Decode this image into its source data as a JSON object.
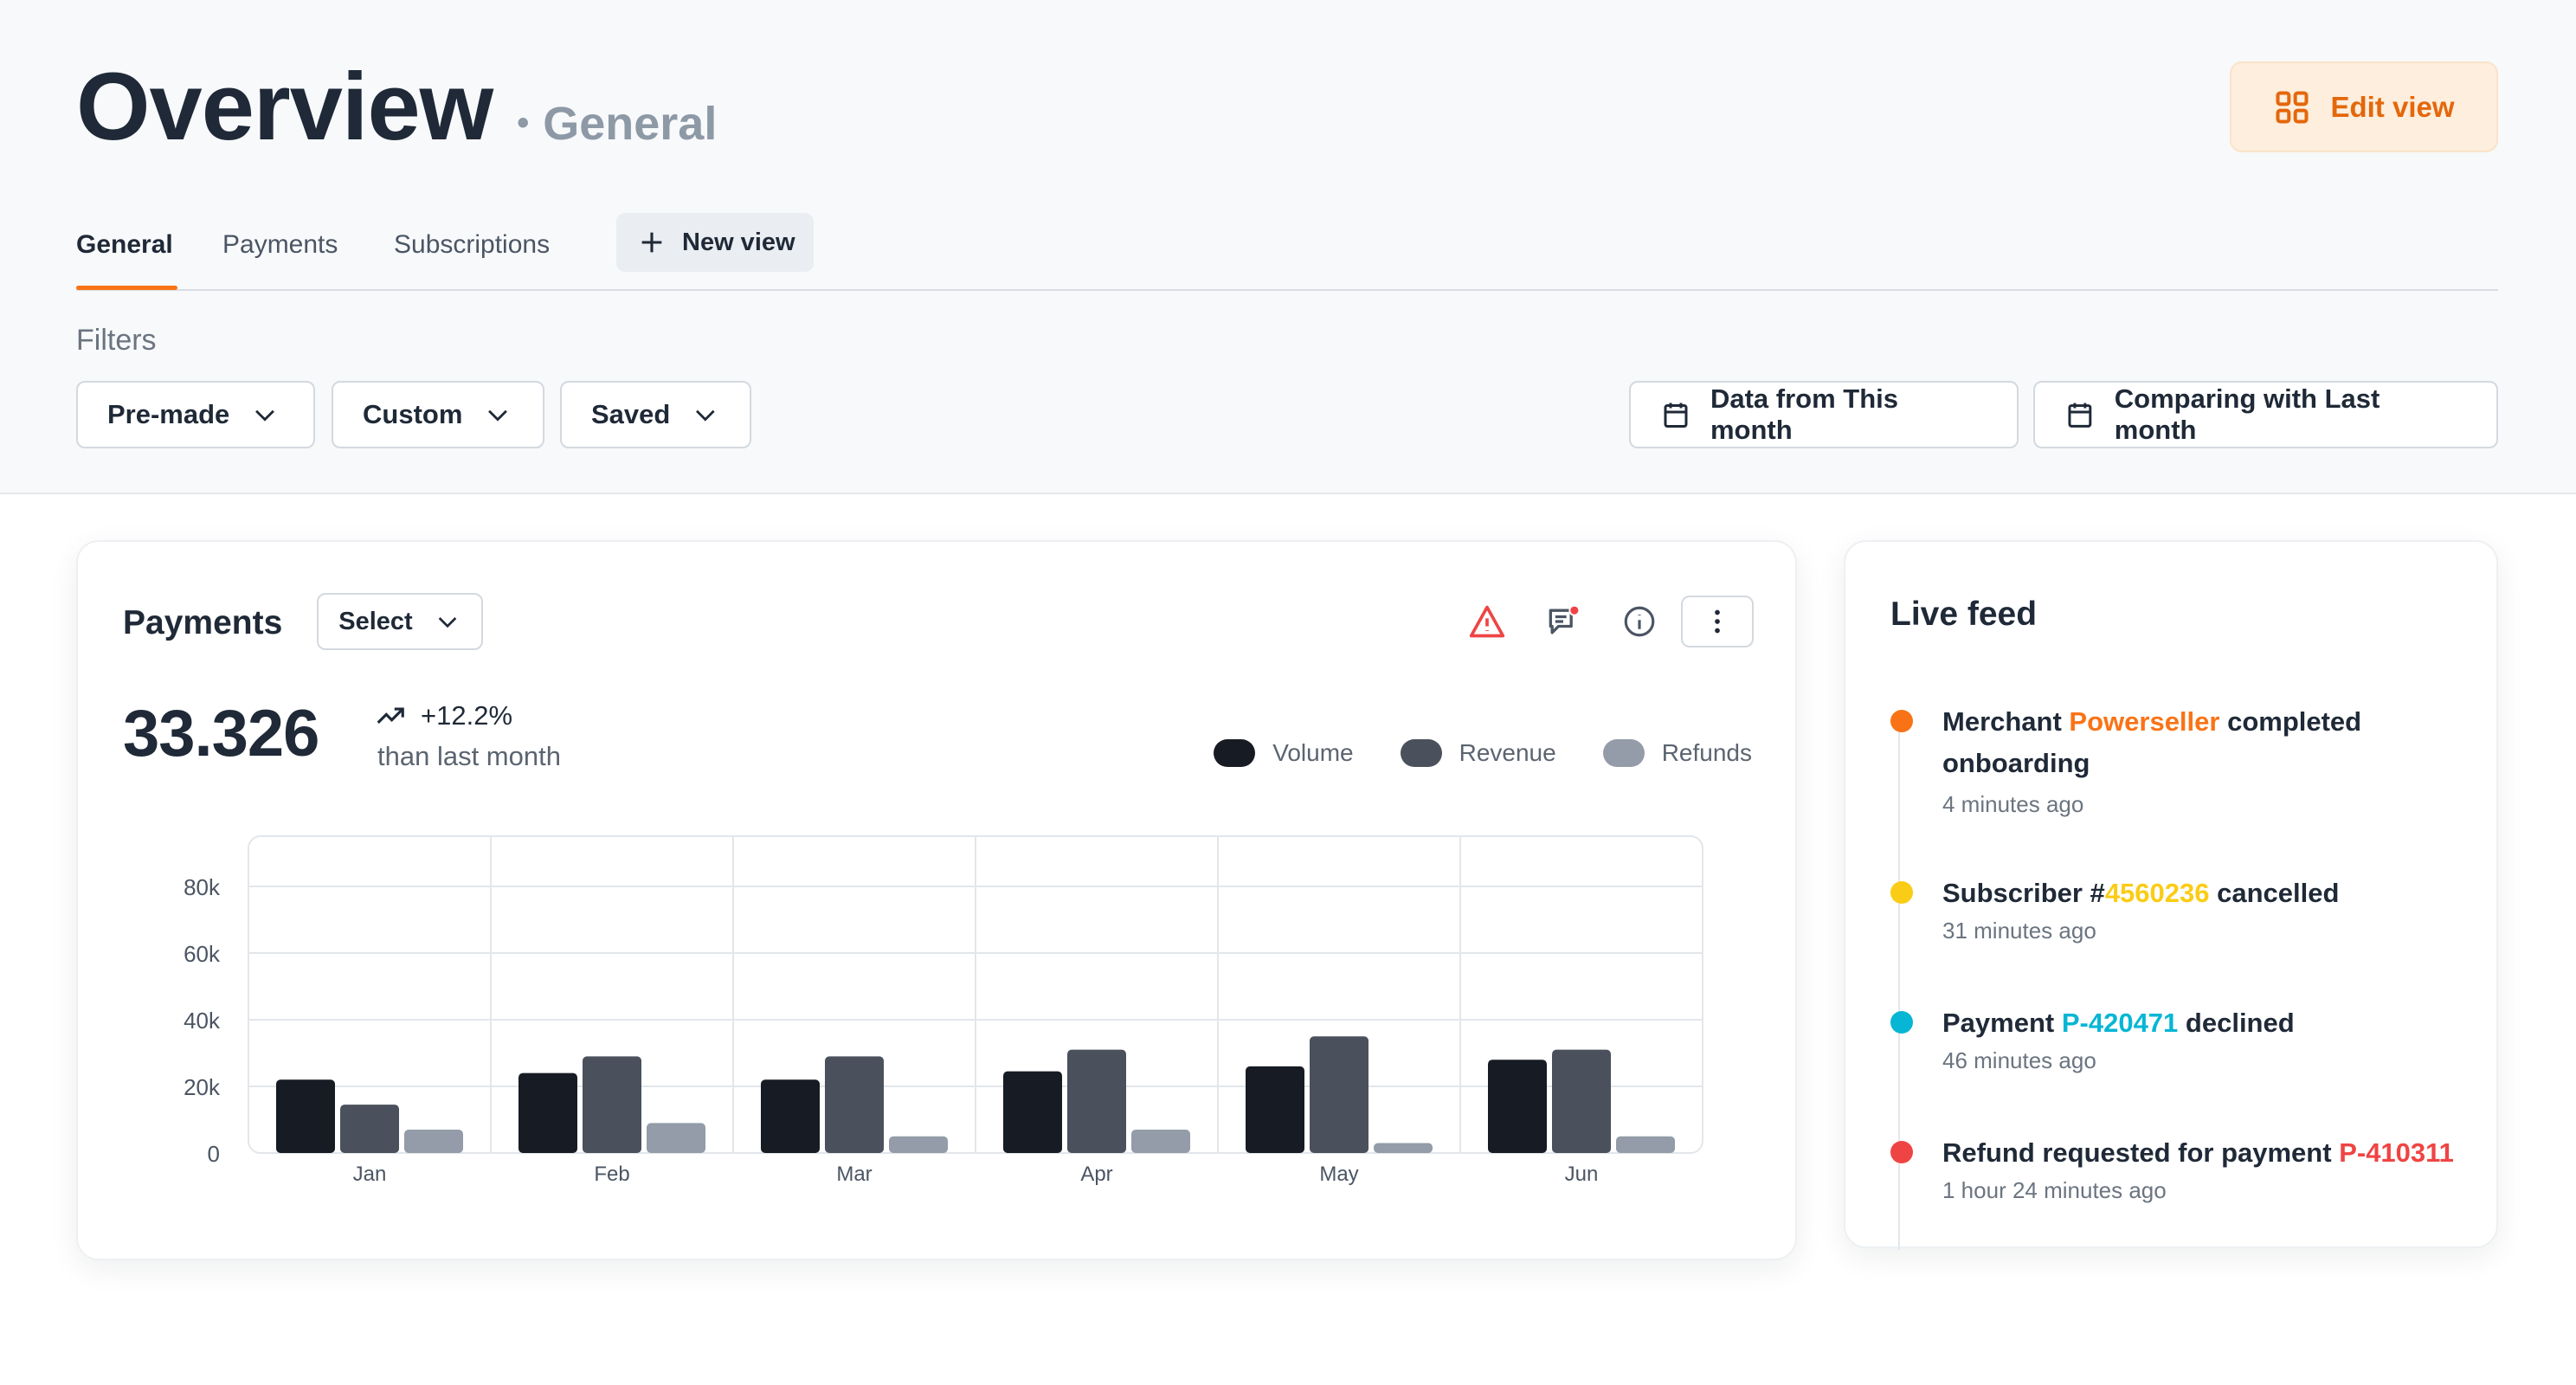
{
  "header": {
    "title": "Overview",
    "subtitle": "General",
    "edit_label": "Edit view"
  },
  "tabs": [
    {
      "label": "General",
      "active": true
    },
    {
      "label": "Payments",
      "active": false
    },
    {
      "label": "Subscriptions",
      "active": false
    }
  ],
  "new_view_label": "New view",
  "filters": {
    "label": "Filters",
    "premade": "Pre-made",
    "custom": "Custom",
    "saved": "Saved",
    "date_range": "Data from This month",
    "comparison": "Comparing with Last month"
  },
  "payments": {
    "title": "Payments",
    "select_label": "Select",
    "value": "33.326",
    "change": "+12.2%",
    "change_caption": "than last month"
  },
  "colors": {
    "accent": "#f97316",
    "volume": "#171c24",
    "revenue": "#4a515c",
    "refunds": "#939ca8",
    "alert": "#ef4444",
    "yellow": "#facc15",
    "cyan": "#06b6d4"
  },
  "chart_data": {
    "type": "bar",
    "categories": [
      "Jan",
      "Feb",
      "Mar",
      "Apr",
      "May",
      "Jun"
    ],
    "series": [
      {
        "name": "Volume",
        "values": [
          22000,
          24000,
          22000,
          24500,
          26000,
          28000
        ]
      },
      {
        "name": "Revenue",
        "values": [
          14500,
          29000,
          29000,
          31000,
          35000,
          31000
        ]
      },
      {
        "name": "Refunds",
        "values": [
          7000,
          9000,
          5000,
          7000,
          3000,
          5000
        ]
      }
    ],
    "yticks": [
      "0",
      "20k",
      "40k",
      "60k",
      "80k"
    ],
    "ylim": [
      0,
      80000
    ],
    "grid": true,
    "legend": "top-right"
  },
  "live_feed": {
    "title": "Live feed",
    "items": [
      {
        "prefix": "Merchant ",
        "highlight": "Powerseller",
        "suffix": " completed onboarding",
        "time": "4 minutes ago",
        "color": "#f97316"
      },
      {
        "prefix": "Subscriber #",
        "highlight": "4560236",
        "suffix": " cancelled",
        "time": "31 minutes ago",
        "color": "#facc15"
      },
      {
        "prefix": "Payment ",
        "highlight": "P-420471",
        "suffix": " declined",
        "time": "46 minutes ago",
        "color": "#06b6d4"
      },
      {
        "prefix": "Refund requested for payment ",
        "highlight": "P-410311",
        "suffix": "",
        "time": "1 hour 24 minutes ago",
        "color": "#ef4444"
      }
    ]
  }
}
